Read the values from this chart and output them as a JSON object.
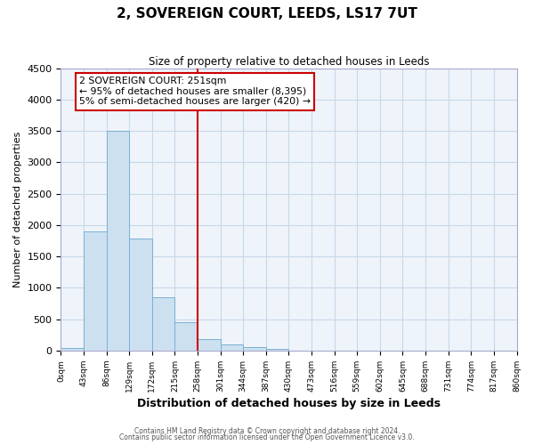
{
  "title": "2, SOVEREIGN COURT, LEEDS, LS17 7UT",
  "subtitle": "Size of property relative to detached houses in Leeds",
  "xlabel": "Distribution of detached houses by size in Leeds",
  "ylabel": "Number of detached properties",
  "bin_labels": [
    "0sqm",
    "43sqm",
    "86sqm",
    "129sqm",
    "172sqm",
    "215sqm",
    "258sqm",
    "301sqm",
    "344sqm",
    "387sqm",
    "430sqm",
    "473sqm",
    "516sqm",
    "559sqm",
    "602sqm",
    "645sqm",
    "688sqm",
    "731sqm",
    "774sqm",
    "817sqm",
    "860sqm"
  ],
  "bar_values": [
    40,
    1900,
    3500,
    1780,
    850,
    460,
    180,
    95,
    55,
    25,
    0,
    0,
    0,
    0,
    0,
    0,
    0,
    0,
    0,
    0
  ],
  "bar_color": "#cce0f0",
  "bar_edge_color": "#7ab0d4",
  "vline_x_index": 6,
  "vline_color": "#cc0000",
  "ylim_min": 0,
  "ylim_max": 4500,
  "yticks": [
    0,
    500,
    1000,
    1500,
    2000,
    2500,
    3000,
    3500,
    4000,
    4500
  ],
  "annotation_title": "2 SOVEREIGN COURT: 251sqm",
  "annotation_line1": "← 95% of detached houses are smaller (8,395)",
  "annotation_line2": "5% of semi-detached houses are larger (420) →",
  "footer1": "Contains HM Land Registry data © Crown copyright and database right 2024.",
  "footer2": "Contains public sector information licensed under the Open Government Licence v3.0.",
  "background_color": "#ffffff",
  "grid_color": "#c8d8e8",
  "plot_bg_color": "#eef4fa"
}
